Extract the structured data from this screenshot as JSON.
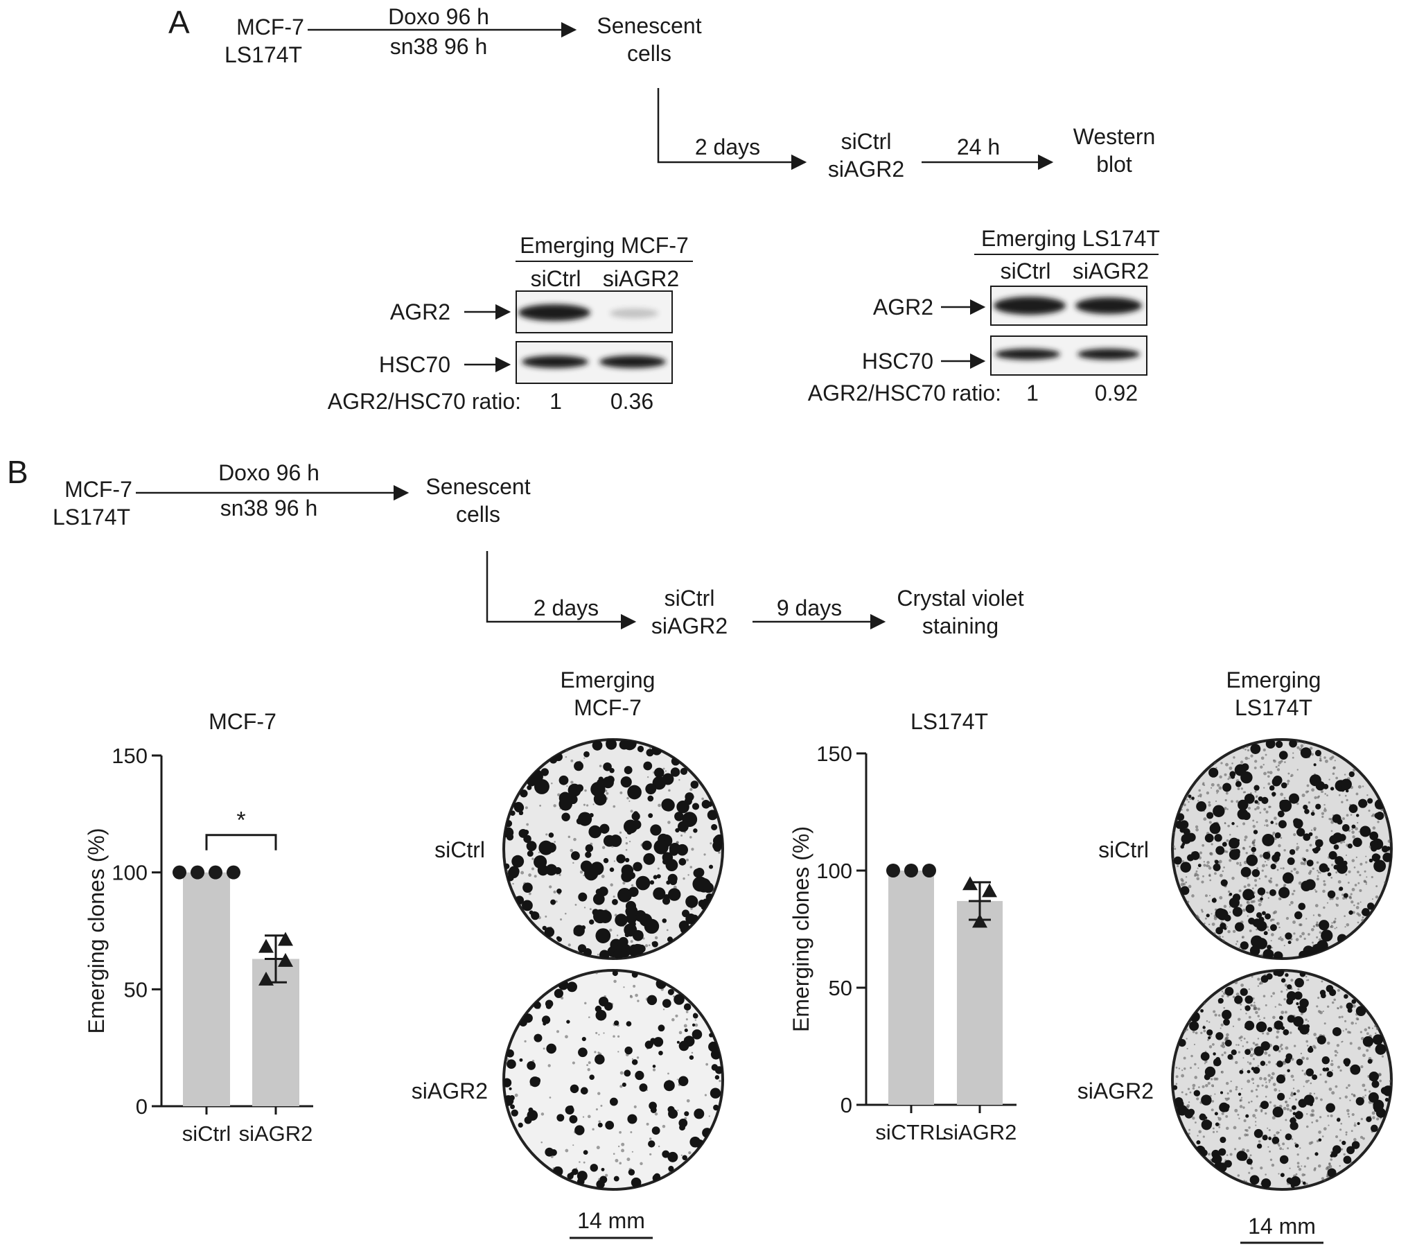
{
  "panel_a": {
    "label": "A",
    "workflow": {
      "cell_lines": [
        "MCF-7",
        "LS174T"
      ],
      "treatments": [
        "Doxo 96 h",
        "sn38 96 h"
      ],
      "result": [
        "Senescent",
        "cells"
      ],
      "step1_time": "2 days",
      "sirna": [
        "siCtrl",
        "siAGR2"
      ],
      "step2_time": "24 h",
      "readout": [
        "Western",
        "blot"
      ]
    },
    "blots": [
      {
        "title": "Emerging MCF-7",
        "lanes": [
          "siCtrl",
          "siAGR2"
        ],
        "rows": [
          "AGR2",
          "HSC70"
        ],
        "ratio_label": "AGR2/HSC70 ratio:",
        "ratios": [
          "1",
          "0.36"
        ]
      },
      {
        "title": "Emerging LS174T",
        "lanes": [
          "siCtrl",
          "siAGR2"
        ],
        "rows": [
          "AGR2",
          "HSC70"
        ],
        "ratio_label": "AGR2/HSC70 ratio:",
        "ratios": [
          "1",
          "0.92"
        ]
      }
    ]
  },
  "panel_b": {
    "label": "B",
    "workflow": {
      "cell_lines": [
        "MCF-7",
        "LS174T"
      ],
      "treatments": [
        "Doxo 96 h",
        "sn38 96 h"
      ],
      "result": [
        "Senescent",
        "cells"
      ],
      "step1_time": "2 days",
      "sirna": [
        "siCtrl",
        "siAGR2"
      ],
      "step2_time": "9 days",
      "readout": [
        "Crystal violet",
        "staining"
      ]
    },
    "plates": [
      {
        "title": [
          "Emerging",
          "MCF-7"
        ],
        "rows": [
          "siCtrl",
          "siAGR2"
        ],
        "scale": "14 mm"
      },
      {
        "title": [
          "Emerging",
          "LS174T"
        ],
        "rows": [
          "siCtrl",
          "siAGR2"
        ],
        "scale": "14 mm"
      }
    ]
  },
  "chart_data": [
    {
      "type": "bar",
      "title": "MCF-7",
      "ylabel": "Emerging clones (%)",
      "categories": [
        "siCtrl",
        "siAGR2"
      ],
      "values": [
        100,
        63
      ],
      "error": [
        0,
        10
      ],
      "points": [
        [
          100,
          100,
          100,
          100
        ],
        [
          54,
          62,
          68,
          71
        ]
      ],
      "ylim": [
        0,
        150
      ],
      "yticks": [
        0,
        50,
        100,
        150
      ],
      "significance": "*"
    },
    {
      "type": "bar",
      "title": "LS174T",
      "ylabel": "Emerging clones (%)",
      "categories": [
        "siCTRL",
        "siAGR2"
      ],
      "values": [
        100,
        87
      ],
      "error": [
        0,
        8
      ],
      "points": [
        [
          100,
          100,
          100
        ],
        [
          78,
          91,
          94
        ]
      ],
      "ylim": [
        0,
        150
      ],
      "yticks": [
        0,
        50,
        100,
        150
      ]
    }
  ],
  "colors": {
    "bar": "#c8c8c8",
    "ink": "#1a1a1a",
    "band": "#1f1f1f"
  }
}
